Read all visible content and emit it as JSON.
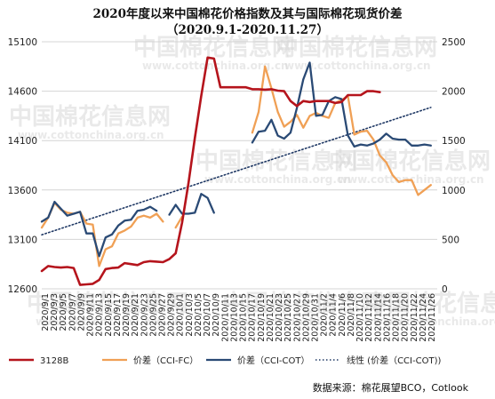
{
  "title_line1": "2020年度以来中国棉花价格指数及其与国际棉花现货价差",
  "title_line2": "（2020.9.1-2020.11.27）",
  "source": "数据来源：棉花展望BCO，Cotlook",
  "watermark": {
    "cn": "中国棉花信息网",
    "url": "www.cottonchina.org.cn"
  },
  "chart_data": {
    "type": "line",
    "left_axis": {
      "min": 12600,
      "max": 15100,
      "ticks": [
        12600,
        13100,
        13600,
        14100,
        14600,
        15100
      ]
    },
    "right_axis": {
      "min": 0,
      "max": 2500,
      "ticks": [
        0,
        500,
        1000,
        1500,
        2000,
        2500
      ]
    },
    "x_labels": [
      "2020/9/1",
      "2020/9/3",
      "2020/9/5",
      "2020/9/7",
      "2020/9/9",
      "2020/9/11",
      "2020/9/13",
      "2020/9/15",
      "2020/9/17",
      "2020/9/19",
      "2020/9/21",
      "2020/9/23",
      "2020/9/25",
      "2020/9/27",
      "2020/9/29",
      "2020/10/1",
      "2020/10/3",
      "2020/10/5",
      "2020/10/7",
      "2020/10/9",
      "2020/10/11",
      "2020/10/13",
      "2020/10/15",
      "2020/10/17",
      "2020/10/19",
      "2020/10/21",
      "2020/10/23",
      "2020/10/25",
      "2020/10/27",
      "2020/10/29",
      "2020/10/31",
      "2020/11/2",
      "2020/11/4",
      "2020/11/6",
      "2020/11/8",
      "2020/11/10",
      "2020/11/12",
      "2020/11/14",
      "2020/11/16",
      "2020/11/18",
      "2020/11/20",
      "2020/11/22",
      "2020/11/24",
      "2020/11/26"
    ],
    "legend": [
      "3128B",
      "价差（CCI-FC）",
      "价差（CCI-COT）",
      "线性 (价差（CCI-COT))"
    ],
    "series": [
      {
        "name": "3128B",
        "axis": "left",
        "color": "#b5141c",
        "points": [
          [
            0,
            12780
          ],
          [
            1,
            12830
          ],
          [
            2,
            12820
          ],
          [
            3,
            12815
          ],
          [
            4,
            12820
          ],
          [
            5,
            12810
          ],
          [
            6,
            12640
          ],
          [
            7,
            12645
          ],
          [
            8,
            12650
          ],
          [
            9,
            12690
          ],
          [
            10,
            12800
          ],
          [
            11,
            12810
          ],
          [
            12,
            12815
          ],
          [
            13,
            12860
          ],
          [
            14,
            12850
          ],
          [
            15,
            12840
          ],
          [
            16,
            12870
          ],
          [
            17,
            12880
          ],
          [
            18,
            12875
          ],
          [
            19,
            12870
          ],
          [
            20,
            12900
          ],
          [
            21,
            12960
          ],
          [
            22,
            13270
          ],
          [
            23,
            13670
          ],
          [
            24,
            14130
          ],
          [
            25,
            14550
          ],
          [
            26,
            14940
          ],
          [
            27,
            14930
          ],
          [
            28,
            14640
          ],
          [
            29,
            14640
          ],
          [
            30,
            14640
          ],
          [
            31,
            14640
          ],
          [
            32,
            14640
          ],
          [
            33,
            14620
          ],
          [
            34,
            14620
          ],
          [
            35,
            14615
          ],
          [
            36,
            14620
          ],
          [
            37,
            14605
          ],
          [
            38,
            14600
          ],
          [
            39,
            14500
          ],
          [
            40,
            14450
          ],
          [
            41,
            14500
          ],
          [
            42,
            14490
          ],
          [
            43,
            14500
          ],
          [
            44,
            14500
          ],
          [
            45,
            14500
          ],
          [
            46,
            14480
          ],
          [
            47,
            14490
          ],
          [
            48,
            14560
          ],
          [
            49,
            14560
          ],
          [
            50,
            14560
          ],
          [
            51,
            14600
          ],
          [
            52,
            14600
          ],
          [
            53,
            14590
          ]
        ]
      },
      {
        "name": "价差（CCI-FC）",
        "axis": "right",
        "color": "#f0a055",
        "segments": [
          [
            [
              0,
              620
            ],
            [
              1,
              720
            ],
            [
              2,
              870
            ],
            [
              3,
              800
            ],
            [
              4,
              770
            ],
            [
              5,
              760
            ],
            [
              6,
              780
            ],
            [
              7,
              660
            ],
            [
              8,
              650
            ],
            [
              9,
              230
            ],
            [
              10,
              400
            ],
            [
              11,
              430
            ],
            [
              12,
              560
            ],
            [
              13,
              590
            ],
            [
              14,
              630
            ],
            [
              15,
              720
            ],
            [
              16,
              740
            ],
            [
              17,
              720
            ],
            [
              18,
              760
            ],
            [
              19,
              680
            ]
          ],
          [
            [
              21,
              620
            ],
            [
              22,
              730
            ]
          ],
          [
            [
              33,
              1580
            ],
            [
              34,
              1790
            ],
            [
              35,
              2250
            ],
            [
              36,
              2030
            ],
            [
              37,
              1790
            ],
            [
              38,
              1640
            ],
            [
              39,
              1690
            ],
            [
              40,
              1760
            ],
            [
              41,
              1630
            ],
            [
              42,
              1750
            ],
            [
              43,
              1780
            ],
            [
              44,
              1750
            ],
            [
              45,
              1730
            ],
            [
              46,
              1880
            ],
            [
              47,
              1910
            ],
            [
              48,
              1950
            ],
            [
              49,
              1560
            ],
            [
              50,
              1590
            ],
            [
              51,
              1600
            ],
            [
              52,
              1510
            ],
            [
              53,
              1350
            ],
            [
              54,
              1280
            ],
            [
              55,
              1150
            ],
            [
              56,
              1080
            ],
            [
              57,
              1100
            ],
            [
              58,
              1100
            ],
            [
              59,
              950
            ],
            [
              60,
              1000
            ],
            [
              61,
              1050
            ]
          ]
        ]
      },
      {
        "name": "价差（CCI-COT）",
        "axis": "right",
        "color": "#2a4a75",
        "segments": [
          [
            [
              0,
              680
            ],
            [
              1,
              720
            ],
            [
              2,
              880
            ],
            [
              3,
              810
            ],
            [
              4,
              740
            ],
            [
              5,
              760
            ],
            [
              6,
              780
            ],
            [
              7,
              560
            ],
            [
              8,
              560
            ],
            [
              9,
              330
            ],
            [
              10,
              520
            ],
            [
              11,
              550
            ],
            [
              12,
              640
            ],
            [
              13,
              690
            ],
            [
              14,
              700
            ],
            [
              15,
              790
            ],
            [
              16,
              800
            ],
            [
              17,
              830
            ],
            [
              18,
              790
            ]
          ],
          [
            [
              20,
              750
            ],
            [
              21,
              850
            ],
            [
              22,
              760
            ],
            [
              23,
              760
            ],
            [
              24,
              770
            ],
            [
              25,
              960
            ],
            [
              26,
              920
            ],
            [
              27,
              770
            ]
          ],
          [
            [
              33,
              1480
            ],
            [
              34,
              1590
            ],
            [
              35,
              1600
            ],
            [
              36,
              1710
            ],
            [
              37,
              1550
            ],
            [
              38,
              1520
            ],
            [
              39,
              1580
            ],
            [
              40,
              1830
            ],
            [
              41,
              2120
            ],
            [
              42,
              2290
            ],
            [
              43,
              1750
            ],
            [
              44,
              1760
            ],
            [
              45,
              1900
            ],
            [
              46,
              1940
            ],
            [
              47,
              1920
            ],
            [
              48,
              1550
            ],
            [
              49,
              1440
            ],
            [
              50,
              1460
            ],
            [
              51,
              1450
            ],
            [
              52,
              1470
            ],
            [
              53,
              1510
            ],
            [
              54,
              1570
            ],
            [
              55,
              1520
            ],
            [
              56,
              1510
            ],
            [
              57,
              1510
            ],
            [
              58,
              1450
            ],
            [
              59,
              1450
            ],
            [
              60,
              1460
            ],
            [
              61,
              1450
            ]
          ]
        ]
      },
      {
        "name": "线性 (价差（CCI-COT))",
        "axis": "right",
        "color": "#1f3864",
        "style": "dotted",
        "trend": true
      }
    ]
  }
}
